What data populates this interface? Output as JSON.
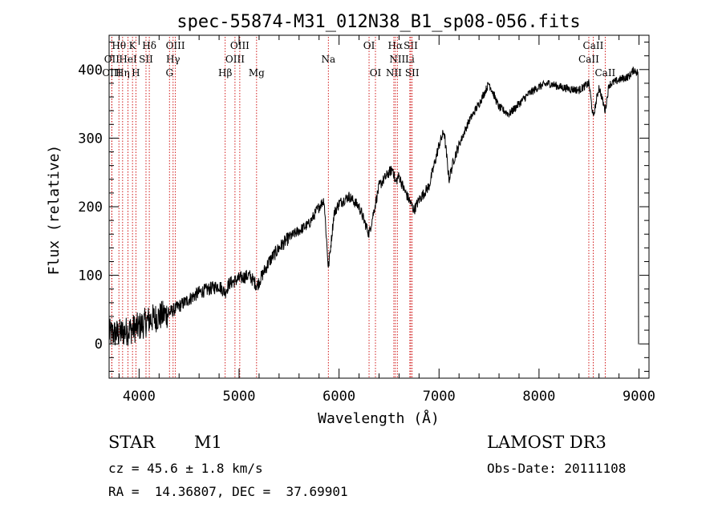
{
  "chart_data": {
    "type": "line",
    "title": "spec-55874-M31_012N38_B1_sp08-056.fits",
    "xlabel": "Wavelength (Å)",
    "ylabel": "Flux (relative)",
    "xlim": [
      3700,
      9100
    ],
    "ylim": [
      -50,
      450
    ],
    "xticks": [
      4000,
      5000,
      6000,
      7000,
      8000,
      9000
    ],
    "yticks": [
      0,
      100,
      200,
      300,
      400
    ],
    "x_tick_labels": [
      "4000",
      "5000",
      "6000",
      "7000",
      "8000",
      "9000"
    ],
    "y_tick_labels": [
      "0",
      "100",
      "200",
      "300",
      "400"
    ],
    "spectrum_anchors": {
      "x": [
        3700,
        3800,
        3900,
        4000,
        4100,
        4200,
        4300,
        4400,
        4500,
        4600,
        4700,
        4800,
        4860,
        4900,
        5000,
        5100,
        5180,
        5300,
        5400,
        5500,
        5600,
        5700,
        5800,
        5850,
        5893,
        5950,
        6000,
        6100,
        6200,
        6300,
        6350,
        6400,
        6500,
        6540,
        6563,
        6600,
        6650,
        6700,
        6750,
        6800,
        6900,
        6950,
        7000,
        7050,
        7100,
        7150,
        7200,
        7300,
        7400,
        7500,
        7600,
        7700,
        7800,
        7900,
        8000,
        8100,
        8200,
        8300,
        8400,
        8500,
        8542,
        8600,
        8662,
        8700,
        8800,
        8900,
        8950,
        8990
      ],
      "y": [
        15,
        15,
        20,
        25,
        35,
        40,
        45,
        55,
        65,
        75,
        80,
        85,
        75,
        88,
        95,
        100,
        85,
        120,
        140,
        155,
        165,
        175,
        200,
        210,
        110,
        190,
        205,
        215,
        200,
        160,
        195,
        230,
        250,
        255,
        235,
        245,
        225,
        210,
        195,
        210,
        230,
        260,
        290,
        310,
        240,
        270,
        290,
        325,
        350,
        380,
        345,
        335,
        350,
        365,
        375,
        380,
        375,
        372,
        370,
        380,
        330,
        375,
        340,
        378,
        385,
        390,
        400,
        395
      ]
    },
    "lines": [
      {
        "label": "Hθ",
        "x": 3798,
        "row": 0
      },
      {
        "label": "OII",
        "x": 3727,
        "row": 1
      },
      {
        "label": "OIII",
        "x": 3727,
        "row": 2
      },
      {
        "label": "K",
        "x": 3934,
        "row": 0
      },
      {
        "label": "HeI",
        "x": 3889,
        "row": 1
      },
      {
        "label": "Hη",
        "x": 3835,
        "row": 2
      },
      {
        "label": "SII",
        "x": 4069,
        "row": 1
      },
      {
        "label": "H",
        "x": 3968,
        "row": 2
      },
      {
        "label": "Hδ",
        "x": 4102,
        "row": 0
      },
      {
        "label": "OIII",
        "x": 4363,
        "row": 0
      },
      {
        "label": "Hγ",
        "x": 4340,
        "row": 1
      },
      {
        "label": "G",
        "x": 4304,
        "row": 2
      },
      {
        "label": "OIII",
        "x": 5007,
        "row": 0
      },
      {
        "label": "OIII",
        "x": 4959,
        "row": 1
      },
      {
        "label": "Hβ",
        "x": 4861,
        "row": 2
      },
      {
        "label": "Mg",
        "x": 5175,
        "row": 2
      },
      {
        "label": "Na",
        "x": 5893,
        "row": 1
      },
      {
        "label": "OI",
        "x": 6300,
        "row": 0
      },
      {
        "label": "OI",
        "x": 6364,
        "row": 2
      },
      {
        "label": "Hα",
        "x": 6563,
        "row": 0
      },
      {
        "label": "SII",
        "x": 6717,
        "row": 0
      },
      {
        "label": "NII",
        "x": 6583,
        "row": 1
      },
      {
        "label": "Li",
        "x": 6708,
        "row": 1
      },
      {
        "label": "NII",
        "x": 6548,
        "row": 2
      },
      {
        "label": "SII",
        "x": 6731,
        "row": 2
      },
      {
        "label": "CaII",
        "x": 8542,
        "row": 0
      },
      {
        "label": "CaII",
        "x": 8498,
        "row": 1
      },
      {
        "label": "CaII",
        "x": 8662,
        "row": 2
      }
    ]
  },
  "info": {
    "object_class": "STAR",
    "subclass": "M1",
    "survey": "LAMOST DR3",
    "cz": "cz = 45.6 ± 1.8 km/s",
    "obs_date": "Obs-Date: 20111108",
    "coords": "RA =  14.36807, DEC =  37.69901"
  },
  "colors": {
    "line_marker": "#cc0000",
    "spectrum": "#000000",
    "axes": "#000000"
  }
}
